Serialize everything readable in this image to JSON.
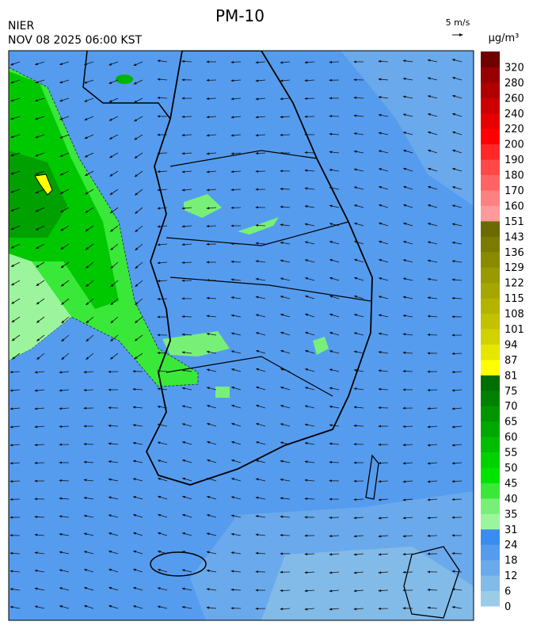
{
  "header": {
    "title": "PM-10",
    "agency": "NIER",
    "datetime": "NOV 08 2025 06:00 KST",
    "wind_scale": "5 m/s",
    "unit": "μg/m³"
  },
  "colorbar": {
    "labels": [
      "0",
      "6",
      "12",
      "18",
      "24",
      "31",
      "35",
      "40",
      "45",
      "50",
      "55",
      "60",
      "65",
      "70",
      "75",
      "81",
      "87",
      "94",
      "101",
      "108",
      "115",
      "122",
      "129",
      "136",
      "143",
      "151",
      "160",
      "170",
      "180",
      "190",
      "200",
      "220",
      "240",
      "260",
      "280",
      "320"
    ],
    "colors": [
      "#9ccbe6",
      "#82bbe8",
      "#6aa9ec",
      "#559cef",
      "#3b8cf0",
      "#9cf59c",
      "#78f078",
      "#3ae83a",
      "#00e400",
      "#00d200",
      "#00bd00",
      "#00a800",
      "#009600",
      "#008200",
      "#006e00",
      "#ffff00",
      "#e6e600",
      "#d2d200",
      "#c2c200",
      "#b4b400",
      "#a6a600",
      "#999900",
      "#8a8a00",
      "#7b7b00",
      "#6b6b00",
      "#ff9a9a",
      "#ff8080",
      "#ff6464",
      "#ff4848",
      "#ff2828",
      "#ff0000",
      "#e60000",
      "#cc0000",
      "#b00000",
      "#960000",
      "#6e0000"
    ]
  }
}
